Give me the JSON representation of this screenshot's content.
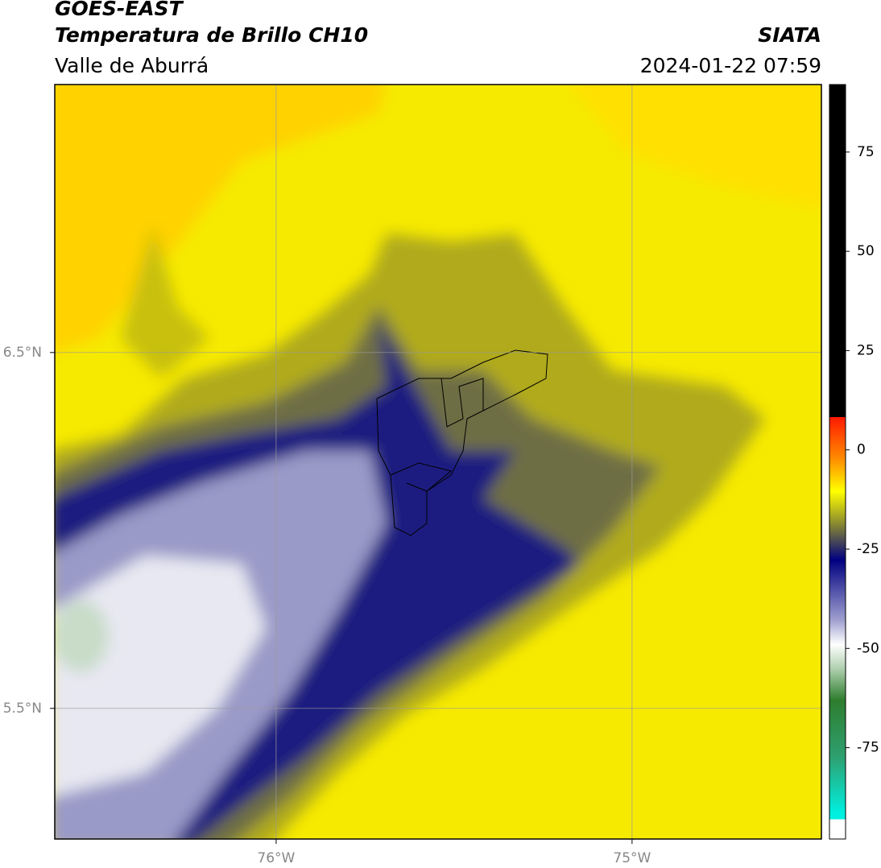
{
  "header": {
    "title": "GOES-EAST",
    "subtitle": "Temperatura de Brillo CH10",
    "region": "Valle de Aburrá",
    "source": "SIATA",
    "datetime": "2024-01-22 07:59"
  },
  "map": {
    "lonlim": [
      -76.622,
      -74.468
    ],
    "latlim": [
      5.133,
      7.253
    ],
    "lon_ticks": [
      {
        "value": -76,
        "label": "76°W"
      },
      {
        "value": -75,
        "label": "75°W"
      }
    ],
    "lat_ticks": [
      {
        "value": 6.5,
        "label": "6.5°N"
      },
      {
        "value": 5.5,
        "label": "5.5°N"
      }
    ]
  },
  "colorbar": {
    "range": [
      -98,
      92
    ],
    "ticks": [
      75,
      50,
      25,
      0,
      -25,
      -50,
      -75
    ]
  }
}
